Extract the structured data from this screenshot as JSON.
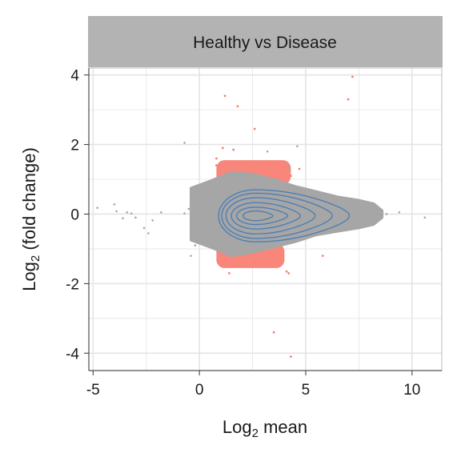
{
  "chart_data": {
    "type": "scatter",
    "facet_title": "Healthy vs Disease",
    "xlabel": {
      "prefix": "Log",
      "sub": "2",
      "suffix": " mean"
    },
    "ylabel": {
      "prefix": "Log",
      "sub": "2",
      "suffix": " (fold change)"
    },
    "xlim": [
      -5.2,
      11.4
    ],
    "ylim": [
      -4.5,
      4.2
    ],
    "x_ticks": [
      -5,
      0,
      5,
      10
    ],
    "x_tick_labels": [
      "-5",
      "0",
      "5",
      "10"
    ],
    "y_ticks": [
      -4,
      -2,
      0,
      2,
      4
    ],
    "y_tick_labels": [
      "-4",
      "-2",
      "0",
      "2",
      "4"
    ],
    "grid": true,
    "colors": {
      "non_significant": "#a6a6a6",
      "significant": "#f88073",
      "density_contour": "#4e7fb4",
      "strip_background": "#b3b3b3",
      "panel_border": "#c8c8c8",
      "grid": "#e4e4e4"
    },
    "series": [
      {
        "kind": "non-significant points",
        "points": [
          [
            -4.8,
            0.18
          ],
          [
            -4.0,
            0.28
          ],
          [
            -3.9,
            0.08
          ],
          [
            -3.4,
            0.05
          ],
          [
            -3.2,
            0.02
          ],
          [
            -3.6,
            -0.12
          ],
          [
            -3.0,
            -0.1
          ],
          [
            -2.6,
            -0.4
          ],
          [
            -2.2,
            -0.18
          ],
          [
            -2.4,
            -0.55
          ],
          [
            -1.8,
            0.05
          ],
          [
            -0.7,
            0.02
          ],
          [
            -0.5,
            0.15
          ],
          [
            -0.3,
            -0.3
          ],
          [
            -0.4,
            -1.2
          ],
          [
            -0.2,
            -0.9
          ],
          [
            -0.7,
            2.05
          ],
          [
            4.6,
            1.95
          ],
          [
            5.5,
            -0.15
          ],
          [
            8.8,
            0.0
          ],
          [
            9.4,
            0.05
          ],
          [
            10.6,
            -0.1
          ],
          [
            8.4,
            0.15
          ],
          [
            4.2,
            1.3
          ],
          [
            3.2,
            1.8
          ]
        ],
        "cloud_envelope": {
          "upper": [
            [
              -0.4,
              0.75
            ],
            [
              0.5,
              0.95
            ],
            [
              1.5,
              1.2
            ],
            [
              2.5,
              1.15
            ],
            [
              3.5,
              1.0
            ],
            [
              4.5,
              0.8
            ],
            [
              5.5,
              0.65
            ],
            [
              6.5,
              0.5
            ],
            [
              7.5,
              0.4
            ],
            [
              8.2,
              0.3
            ],
            [
              8.6,
              0.1
            ]
          ],
          "lower": [
            [
              8.6,
              -0.1
            ],
            [
              8.2,
              -0.3
            ],
            [
              7.5,
              -0.4
            ],
            [
              6.5,
              -0.5
            ],
            [
              5.5,
              -0.6
            ],
            [
              4.5,
              -0.8
            ],
            [
              3.5,
              -0.95
            ],
            [
              2.5,
              -1.1
            ],
            [
              1.5,
              -1.2
            ],
            [
              0.5,
              -0.95
            ],
            [
              -0.4,
              -0.75
            ]
          ]
        }
      },
      {
        "kind": "significant points",
        "points": [
          [
            1.2,
            3.4
          ],
          [
            1.8,
            3.1
          ],
          [
            2.6,
            2.45
          ],
          [
            7.2,
            3.95
          ],
          [
            7.0,
            3.3
          ],
          [
            4.3,
            1.1
          ],
          [
            4.7,
            1.3
          ],
          [
            3.5,
            -3.4
          ],
          [
            4.3,
            -4.1
          ],
          [
            5.8,
            -1.2
          ],
          [
            4.2,
            -1.7
          ],
          [
            4.1,
            -1.65
          ],
          [
            3.4,
            -1.2
          ],
          [
            2.6,
            -1.4
          ],
          [
            1.4,
            -1.7
          ],
          [
            0.8,
            1.4
          ],
          [
            1.1,
            1.9
          ],
          [
            0.8,
            1.6
          ],
          [
            1.9,
            -1.5
          ],
          [
            1.6,
            1.85
          ]
        ],
        "bands": [
          {
            "x": [
              0.8,
              4.3
            ],
            "y": [
              0.85,
              1.55
            ]
          },
          {
            "x": [
              0.8,
              4.0
            ],
            "y": [
              -1.55,
              -0.85
            ]
          }
        ]
      }
    ],
    "density_contours": {
      "center": [
        2.65,
        -0.05
      ],
      "levels": [
        {
          "rx_left": 0.6,
          "rx_right": 0.8,
          "ry": 0.14
        },
        {
          "rx_left": 0.9,
          "rx_right": 1.5,
          "ry": 0.25
        },
        {
          "rx_left": 1.15,
          "rx_right": 2.1,
          "ry": 0.38
        },
        {
          "rx_left": 1.4,
          "rx_right": 2.8,
          "ry": 0.52
        },
        {
          "rx_left": 1.6,
          "rx_right": 3.6,
          "ry": 0.65
        },
        {
          "rx_left": 1.75,
          "rx_right": 4.4,
          "ry": 0.75
        }
      ]
    }
  }
}
